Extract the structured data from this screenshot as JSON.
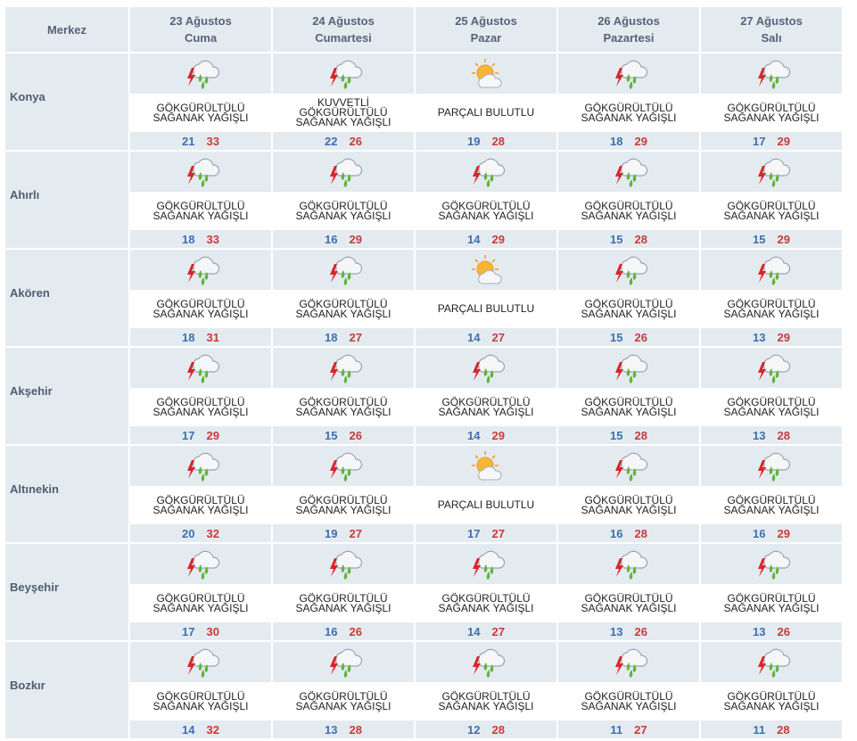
{
  "header": {
    "center_label": "Merkez",
    "days": [
      {
        "date": "23 Ağustos",
        "weekday": "Cuma"
      },
      {
        "date": "24 Ağustos",
        "weekday": "Cumartesi"
      },
      {
        "date": "25 Ağustos",
        "weekday": "Pazar"
      },
      {
        "date": "26 Ağustos",
        "weekday": "Pazartesi"
      },
      {
        "date": "27 Ağustos",
        "weekday": "Salı"
      }
    ]
  },
  "colors": {
    "header_bg": "#e4ebf0",
    "min_temp": "#3e6fae",
    "max_temp": "#c93a3a",
    "city_text": "#4e5e72"
  },
  "cities": [
    {
      "name": "Konya",
      "days": [
        {
          "icon": "thunderstorm-rain-icon",
          "cond": [
            "GÖKGÜRÜLTÜLÜ",
            "SAĞANAK YAĞIŞLI"
          ],
          "min": "21",
          "max": "33"
        },
        {
          "icon": "thunderstorm-rain-icon",
          "cond": [
            "KUVVETLİ",
            "GÖKGÜRÜLTÜLÜ",
            "SAĞANAK YAĞIŞLI"
          ],
          "min": "22",
          "max": "26"
        },
        {
          "icon": "partly-cloudy-icon",
          "cond": [
            "PARÇALI BULUTLU"
          ],
          "min": "19",
          "max": "28"
        },
        {
          "icon": "thunderstorm-rain-icon",
          "cond": [
            "GÖKGÜRÜLTÜLÜ",
            "SAĞANAK YAĞIŞLI"
          ],
          "min": "18",
          "max": "29"
        },
        {
          "icon": "thunderstorm-rain-icon",
          "cond": [
            "GÖKGÜRÜLTÜLÜ",
            "SAĞANAK YAĞIŞLI"
          ],
          "min": "17",
          "max": "29"
        }
      ]
    },
    {
      "name": "Ahırlı",
      "days": [
        {
          "icon": "thunderstorm-rain-icon",
          "cond": [
            "GÖKGÜRÜLTÜLÜ",
            "SAĞANAK YAĞIŞLI"
          ],
          "min": "18",
          "max": "33"
        },
        {
          "icon": "thunderstorm-rain-icon",
          "cond": [
            "GÖKGÜRÜLTÜLÜ",
            "SAĞANAK YAĞIŞLI"
          ],
          "min": "16",
          "max": "29"
        },
        {
          "icon": "thunderstorm-rain-icon",
          "cond": [
            "GÖKGÜRÜLTÜLÜ",
            "SAĞANAK YAĞIŞLI"
          ],
          "min": "14",
          "max": "29"
        },
        {
          "icon": "thunderstorm-rain-icon",
          "cond": [
            "GÖKGÜRÜLTÜLÜ",
            "SAĞANAK YAĞIŞLI"
          ],
          "min": "15",
          "max": "28"
        },
        {
          "icon": "thunderstorm-rain-icon",
          "cond": [
            "GÖKGÜRÜLTÜLÜ",
            "SAĞANAK YAĞIŞLI"
          ],
          "min": "15",
          "max": "29"
        }
      ]
    },
    {
      "name": "Akören",
      "days": [
        {
          "icon": "thunderstorm-rain-icon",
          "cond": [
            "GÖKGÜRÜLTÜLÜ",
            "SAĞANAK YAĞIŞLI"
          ],
          "min": "18",
          "max": "31"
        },
        {
          "icon": "thunderstorm-rain-icon",
          "cond": [
            "GÖKGÜRÜLTÜLÜ",
            "SAĞANAK YAĞIŞLI"
          ],
          "min": "18",
          "max": "27"
        },
        {
          "icon": "partly-cloudy-icon",
          "cond": [
            "PARÇALI BULUTLU"
          ],
          "min": "14",
          "max": "27"
        },
        {
          "icon": "thunderstorm-rain-icon",
          "cond": [
            "GÖKGÜRÜLTÜLÜ",
            "SAĞANAK YAĞIŞLI"
          ],
          "min": "15",
          "max": "26"
        },
        {
          "icon": "thunderstorm-rain-icon",
          "cond": [
            "GÖKGÜRÜLTÜLÜ",
            "SAĞANAK YAĞIŞLI"
          ],
          "min": "13",
          "max": "29"
        }
      ]
    },
    {
      "name": "Akşehir",
      "days": [
        {
          "icon": "thunderstorm-rain-icon",
          "cond": [
            "GÖKGÜRÜLTÜLÜ",
            "SAĞANAK YAĞIŞLI"
          ],
          "min": "17",
          "max": "29"
        },
        {
          "icon": "thunderstorm-rain-icon",
          "cond": [
            "GÖKGÜRÜLTÜLÜ",
            "SAĞANAK YAĞIŞLI"
          ],
          "min": "15",
          "max": "26"
        },
        {
          "icon": "thunderstorm-rain-icon",
          "cond": [
            "GÖKGÜRÜLTÜLÜ",
            "SAĞANAK YAĞIŞLI"
          ],
          "min": "14",
          "max": "29"
        },
        {
          "icon": "thunderstorm-rain-icon",
          "cond": [
            "GÖKGÜRÜLTÜLÜ",
            "SAĞANAK YAĞIŞLI"
          ],
          "min": "15",
          "max": "28"
        },
        {
          "icon": "thunderstorm-rain-icon",
          "cond": [
            "GÖKGÜRÜLTÜLÜ",
            "SAĞANAK YAĞIŞLI"
          ],
          "min": "13",
          "max": "28"
        }
      ]
    },
    {
      "name": "Altınekin",
      "days": [
        {
          "icon": "thunderstorm-rain-icon",
          "cond": [
            "GÖKGÜRÜLTÜLÜ",
            "SAĞANAK YAĞIŞLI"
          ],
          "min": "20",
          "max": "32"
        },
        {
          "icon": "thunderstorm-rain-icon",
          "cond": [
            "GÖKGÜRÜLTÜLÜ",
            "SAĞANAK YAĞIŞLI"
          ],
          "min": "19",
          "max": "27"
        },
        {
          "icon": "partly-cloudy-icon",
          "cond": [
            "PARÇALI BULUTLU"
          ],
          "min": "17",
          "max": "27"
        },
        {
          "icon": "thunderstorm-rain-icon",
          "cond": [
            "GÖKGÜRÜLTÜLÜ",
            "SAĞANAK YAĞIŞLI"
          ],
          "min": "16",
          "max": "28"
        },
        {
          "icon": "thunderstorm-rain-icon",
          "cond": [
            "GÖKGÜRÜLTÜLÜ",
            "SAĞANAK YAĞIŞLI"
          ],
          "min": "16",
          "max": "29"
        }
      ]
    },
    {
      "name": "Beyşehir",
      "days": [
        {
          "icon": "thunderstorm-rain-icon",
          "cond": [
            "GÖKGÜRÜLTÜLÜ",
            "SAĞANAK YAĞIŞLI"
          ],
          "min": "17",
          "max": "30"
        },
        {
          "icon": "thunderstorm-rain-icon",
          "cond": [
            "GÖKGÜRÜLTÜLÜ",
            "SAĞANAK YAĞIŞLI"
          ],
          "min": "16",
          "max": "26"
        },
        {
          "icon": "thunderstorm-rain-icon",
          "cond": [
            "GÖKGÜRÜLTÜLÜ",
            "SAĞANAK YAĞIŞLI"
          ],
          "min": "14",
          "max": "27"
        },
        {
          "icon": "thunderstorm-rain-icon",
          "cond": [
            "GÖKGÜRÜLTÜLÜ",
            "SAĞANAK YAĞIŞLI"
          ],
          "min": "13",
          "max": "26"
        },
        {
          "icon": "thunderstorm-rain-icon",
          "cond": [
            "GÖKGÜRÜLTÜLÜ",
            "SAĞANAK YAĞIŞLI"
          ],
          "min": "13",
          "max": "26"
        }
      ]
    },
    {
      "name": "Bozkır",
      "days": [
        {
          "icon": "thunderstorm-rain-icon",
          "cond": [
            "GÖKGÜRÜLTÜLÜ",
            "SAĞANAK YAĞIŞLI"
          ],
          "min": "14",
          "max": "32"
        },
        {
          "icon": "thunderstorm-rain-icon",
          "cond": [
            "GÖKGÜRÜLTÜLÜ",
            "SAĞANAK YAĞIŞLI"
          ],
          "min": "13",
          "max": "28"
        },
        {
          "icon": "thunderstorm-rain-icon",
          "cond": [
            "GÖKGÜRÜLTÜLÜ",
            "SAĞANAK YAĞIŞLI"
          ],
          "min": "12",
          "max": "28"
        },
        {
          "icon": "thunderstorm-rain-icon",
          "cond": [
            "GÖKGÜRÜLTÜLÜ",
            "SAĞANAK YAĞIŞLI"
          ],
          "min": "11",
          "max": "27"
        },
        {
          "icon": "thunderstorm-rain-icon",
          "cond": [
            "GÖKGÜRÜLTÜLÜ",
            "SAĞANAK YAĞIŞLI"
          ],
          "min": "11",
          "max": "28"
        }
      ]
    }
  ]
}
